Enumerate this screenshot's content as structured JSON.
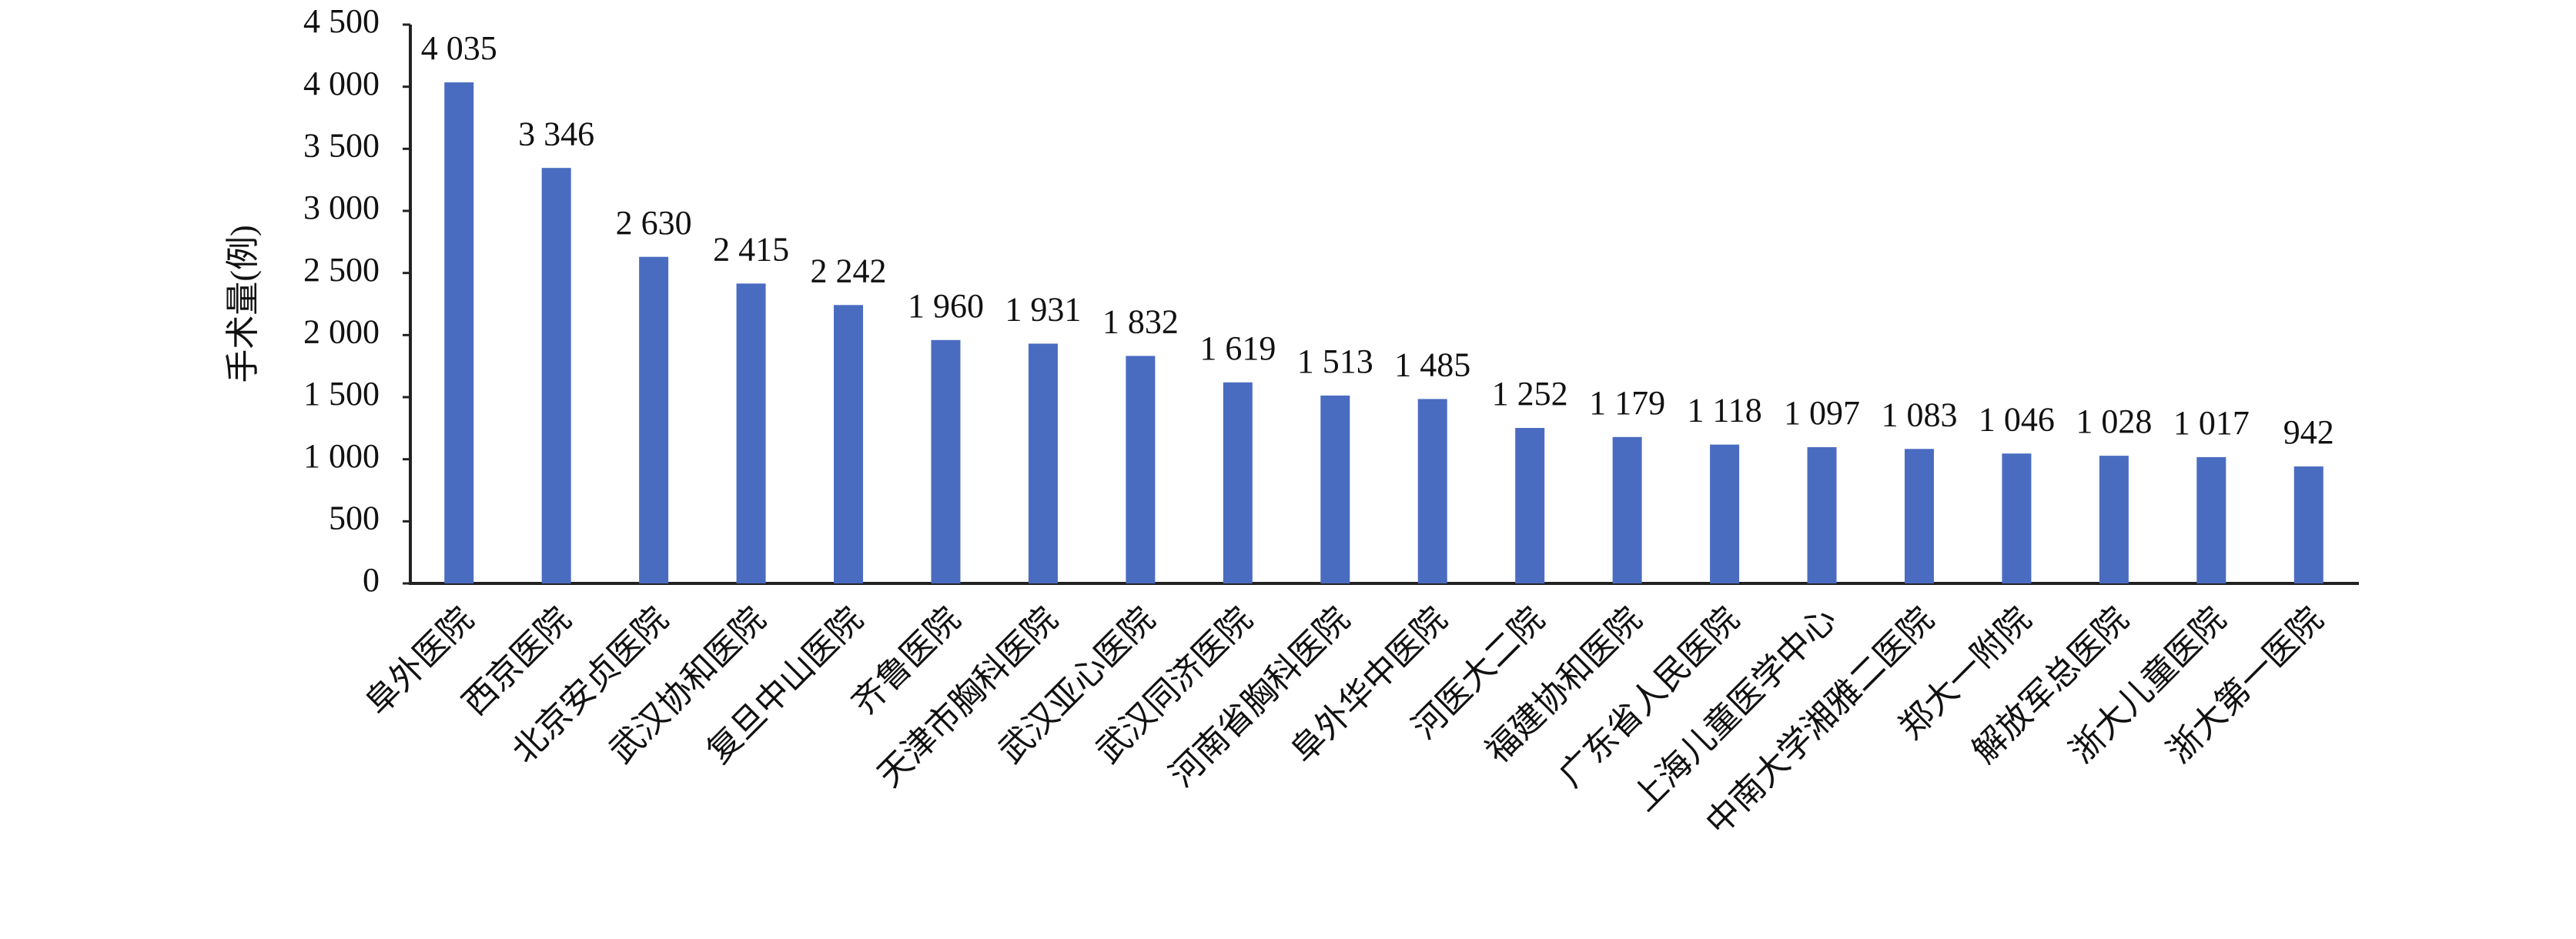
{
  "chart_data": {
    "type": "bar",
    "y_label": "手术量(例)",
    "categories": [
      "阜外医院",
      "西京医院",
      "北京安贞医院",
      "武汉协和医院",
      "复旦中山医院",
      "齐鲁医院",
      "天津市胸科医院",
      "武汉亚心医院",
      "武汉同济医院",
      "河南省胸科医院",
      "阜外华中医院",
      "河医大二院",
      "福建协和医院",
      "广东省人民医院",
      "上海儿童医学中心",
      "中南大学湘雅二医院",
      "郑大一附院",
      "解放军总医院",
      "浙大儿童医院",
      "浙大第一医院"
    ],
    "values": [
      4035,
      3346,
      2630,
      2415,
      2242,
      1960,
      1931,
      1832,
      1619,
      1513,
      1485,
      1252,
      1179,
      1118,
      1097,
      1083,
      1046,
      1028,
      1017,
      942
    ],
    "value_labels": [
      "4 035",
      "3 346",
      "2 630",
      "2 415",
      "2 242",
      "1 960",
      "1 931",
      "1 832",
      "1 619",
      "1 513",
      "1 485",
      "1 252",
      "1 179",
      "1 118",
      "1 097",
      "1 083",
      "1 046",
      "1 028",
      "1 017",
      "942"
    ],
    "color": "#4a6cc0",
    "ylim": [
      0,
      4500
    ],
    "yticks": [
      0,
      500,
      {
        "value": 1000,
        "label": "1 000"
      },
      {
        "value": 1500,
        "label": "1 500"
      },
      {
        "value": 2000,
        "label": "2 000"
      },
      {
        "value": 2500,
        "label": "2 500"
      },
      {
        "value": 3000,
        "label": "3 000"
      },
      {
        "value": 3500,
        "label": "3 500"
      },
      {
        "value": 4000,
        "label": "4 000"
      },
      {
        "value": 4500,
        "label": "4 500"
      }
    ],
    "grid": false
  }
}
